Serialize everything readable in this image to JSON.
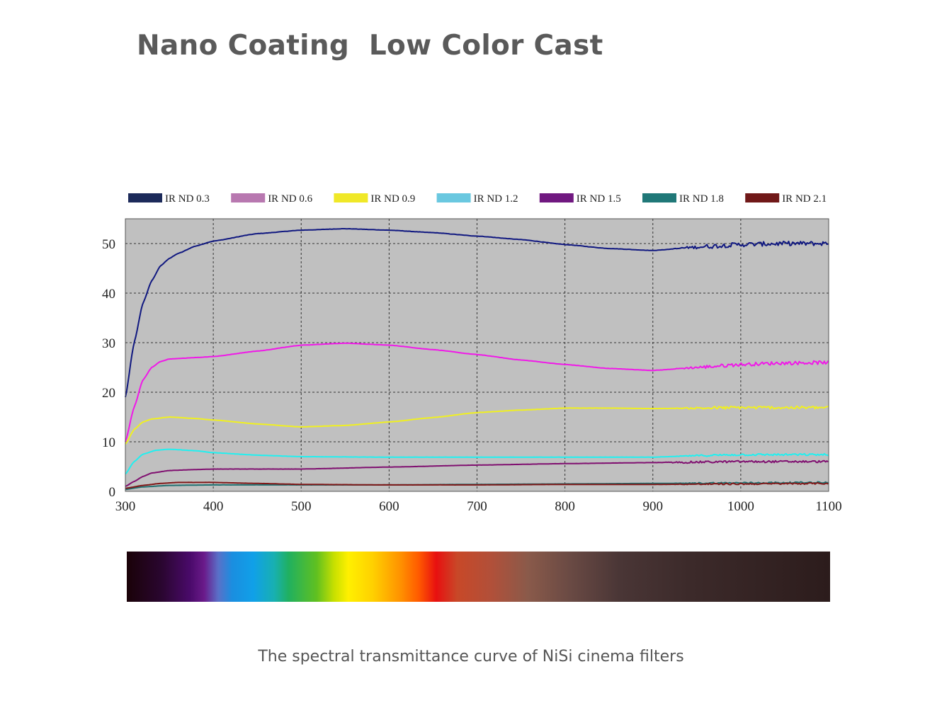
{
  "page": {
    "title": "Nano Coating  Low Color Cast",
    "caption": "The spectral transmittance curve of NiSi cinema filters"
  },
  "chart_data": {
    "type": "line",
    "title": "Nano Coating  Low Color Cast",
    "xlabel": "",
    "ylabel": "",
    "xlim": [
      300,
      1100
    ],
    "ylim": [
      0,
      55
    ],
    "x_ticks": [
      300,
      400,
      500,
      600,
      700,
      800,
      900,
      1000,
      1100
    ],
    "y_ticks": [
      0,
      10,
      20,
      30,
      40,
      50
    ],
    "grid": true,
    "legend_position": "top",
    "background": "#c0c0c0",
    "series": [
      {
        "name": "IR ND 0.3",
        "legend_color": "#1c2a5a",
        "color": "#101880",
        "points": [
          [
            300,
            19
          ],
          [
            310,
            30
          ],
          [
            320,
            38
          ],
          [
            330,
            42.5
          ],
          [
            340,
            45.5
          ],
          [
            350,
            47
          ],
          [
            360,
            48
          ],
          [
            380,
            49.5
          ],
          [
            400,
            50.5
          ],
          [
            450,
            52
          ],
          [
            500,
            52.7
          ],
          [
            550,
            53
          ],
          [
            600,
            52.7
          ],
          [
            650,
            52.2
          ],
          [
            700,
            51.5
          ],
          [
            750,
            50.8
          ],
          [
            800,
            49.8
          ],
          [
            850,
            49
          ],
          [
            900,
            48.6
          ],
          [
            950,
            49.3
          ],
          [
            1000,
            49.8
          ],
          [
            1050,
            50
          ],
          [
            1100,
            50
          ]
        ],
        "noise_from": 920,
        "noise": 0.45
      },
      {
        "name": "IR ND 0.6",
        "legend_color": "#b878b0",
        "color": "#f018e8",
        "points": [
          [
            300,
            10
          ],
          [
            310,
            17
          ],
          [
            320,
            22.5
          ],
          [
            330,
            25
          ],
          [
            340,
            26.2
          ],
          [
            350,
            26.7
          ],
          [
            380,
            27
          ],
          [
            400,
            27.2
          ],
          [
            450,
            28.3
          ],
          [
            500,
            29.5
          ],
          [
            550,
            29.9
          ],
          [
            600,
            29.5
          ],
          [
            650,
            28.6
          ],
          [
            700,
            27.6
          ],
          [
            750,
            26.5
          ],
          [
            800,
            25.6
          ],
          [
            850,
            24.8
          ],
          [
            900,
            24.4
          ],
          [
            950,
            25
          ],
          [
            1000,
            25.6
          ],
          [
            1050,
            25.9
          ],
          [
            1100,
            26
          ]
        ],
        "noise_from": 920,
        "noise": 0.35
      },
      {
        "name": "IR ND 0.9",
        "legend_color": "#f0e828",
        "color": "#f0f020",
        "points": [
          [
            300,
            9.5
          ],
          [
            310,
            12.5
          ],
          [
            320,
            14
          ],
          [
            330,
            14.6
          ],
          [
            350,
            15
          ],
          [
            380,
            14.7
          ],
          [
            400,
            14.4
          ],
          [
            450,
            13.6
          ],
          [
            500,
            13
          ],
          [
            550,
            13.3
          ],
          [
            600,
            14
          ],
          [
            650,
            14.9
          ],
          [
            700,
            15.9
          ],
          [
            750,
            16.4
          ],
          [
            800,
            16.8
          ],
          [
            850,
            16.8
          ],
          [
            900,
            16.7
          ],
          [
            950,
            16.8
          ],
          [
            1000,
            16.9
          ],
          [
            1050,
            16.9
          ],
          [
            1100,
            16.9
          ]
        ],
        "noise_from": 920,
        "noise": 0.3
      },
      {
        "name": "IR ND 1.2",
        "legend_color": "#6ac8e0",
        "color": "#20f0f0",
        "points": [
          [
            300,
            3.5
          ],
          [
            310,
            6
          ],
          [
            320,
            7.5
          ],
          [
            335,
            8.3
          ],
          [
            350,
            8.5
          ],
          [
            380,
            8.2
          ],
          [
            400,
            7.8
          ],
          [
            450,
            7.3
          ],
          [
            500,
            7
          ],
          [
            600,
            6.9
          ],
          [
            700,
            6.9
          ],
          [
            800,
            6.9
          ],
          [
            900,
            6.9
          ],
          [
            950,
            7.2
          ],
          [
            1000,
            7.4
          ],
          [
            1100,
            7.4
          ]
        ],
        "noise_from": 920,
        "noise": 0.2
      },
      {
        "name": "IR ND 1.5",
        "legend_color": "#701880",
        "color": "#801070",
        "points": [
          [
            300,
            1
          ],
          [
            310,
            2
          ],
          [
            320,
            3
          ],
          [
            330,
            3.7
          ],
          [
            350,
            4.2
          ],
          [
            380,
            4.4
          ],
          [
            400,
            4.5
          ],
          [
            500,
            4.5
          ],
          [
            600,
            4.9
          ],
          [
            700,
            5.3
          ],
          [
            800,
            5.6
          ],
          [
            900,
            5.8
          ],
          [
            1000,
            6
          ],
          [
            1100,
            6
          ]
        ],
        "noise_from": 900,
        "noise": 0.2
      },
      {
        "name": "IR ND 1.8",
        "legend_color": "#207878",
        "color": "#207070",
        "points": [
          [
            300,
            0.4
          ],
          [
            320,
            0.9
          ],
          [
            350,
            1.2
          ],
          [
            400,
            1.3
          ],
          [
            500,
            1.3
          ],
          [
            600,
            1.3
          ],
          [
            700,
            1.4
          ],
          [
            800,
            1.5
          ],
          [
            900,
            1.6
          ],
          [
            1000,
            1.7
          ],
          [
            1100,
            1.8
          ]
        ],
        "noise_from": 920,
        "noise": 0.15
      },
      {
        "name": "IR ND 2.1",
        "legend_color": "#701818",
        "color": "#801818",
        "points": [
          [
            300,
            0.6
          ],
          [
            320,
            1.2
          ],
          [
            340,
            1.6
          ],
          [
            360,
            1.8
          ],
          [
            400,
            1.8
          ],
          [
            450,
            1.6
          ],
          [
            500,
            1.4
          ],
          [
            600,
            1.3
          ],
          [
            700,
            1.3
          ],
          [
            800,
            1.4
          ],
          [
            900,
            1.4
          ],
          [
            1000,
            1.5
          ],
          [
            1100,
            1.6
          ]
        ],
        "noise_from": 920,
        "noise": 0.15
      }
    ]
  }
}
